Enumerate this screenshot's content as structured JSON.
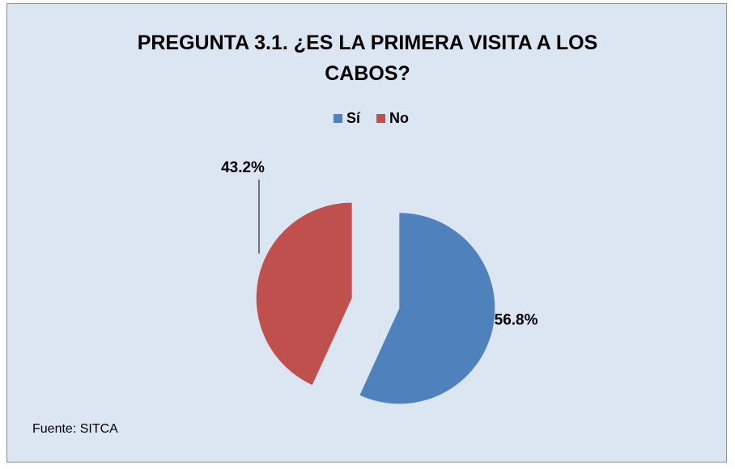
{
  "chart_data": {
    "type": "pie",
    "title": "PREGUNTA 3.1. ¿ES LA PRIMERA VISITA A LOS CABOS?",
    "categories": [
      "Sí",
      "No"
    ],
    "values": [
      56.8,
      43.2
    ],
    "value_labels": [
      "56.8%",
      "43.2%"
    ],
    "colors": [
      "#4f81bd",
      "#c0504d"
    ],
    "legend": "top",
    "source": "Fuente: SITCA"
  }
}
